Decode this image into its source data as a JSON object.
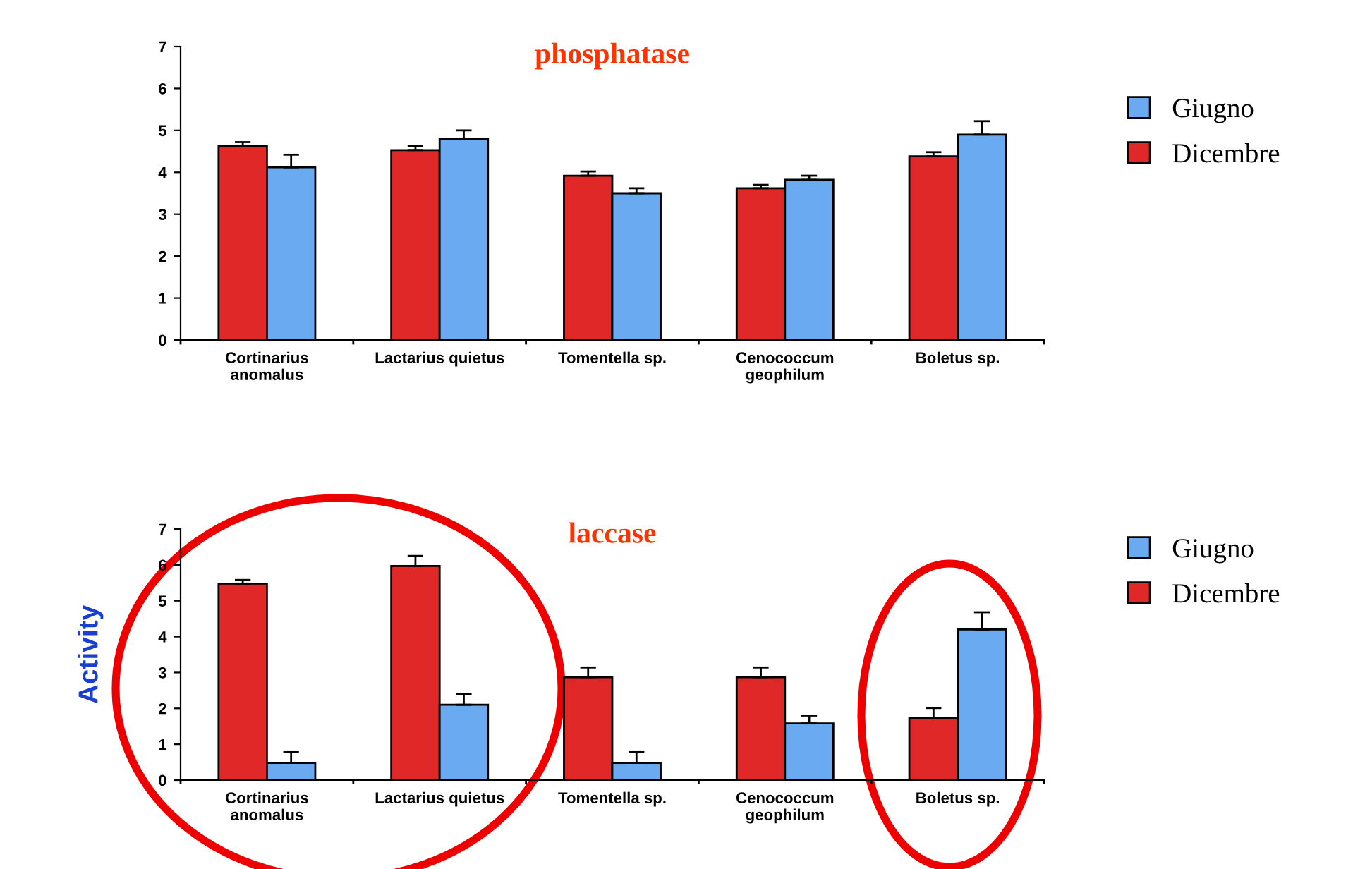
{
  "chart_data": [
    {
      "type": "bar",
      "title": "phosphatase",
      "categories": [
        "Cortinarius\nanomalus",
        "Lactarius quietus",
        "Tomentella sp.",
        "Cenococcum\ngeophilum",
        "Boletus sp."
      ],
      "ylim": [
        0,
        7
      ],
      "yticks": [
        0,
        1,
        2,
        3,
        4,
        5,
        6,
        7
      ],
      "legend": "right",
      "grid": false,
      "series": [
        {
          "name": "Dicembre",
          "color": "#e02828",
          "values": [
            4.62,
            4.53,
            3.92,
            3.62,
            4.38
          ],
          "errors": [
            0.1,
            0.1,
            0.1,
            0.08,
            0.1
          ]
        },
        {
          "name": "Giugno",
          "color": "#6aaaf0",
          "values": [
            4.12,
            4.8,
            3.5,
            3.82,
            4.9
          ],
          "errors": [
            0.3,
            0.2,
            0.12,
            0.1,
            0.32
          ]
        }
      ]
    },
    {
      "type": "bar",
      "title": "laccase",
      "ylabel": "Activity",
      "categories": [
        "Cortinarius\nanomalus",
        "Lactarius quietus",
        "Tomentella sp.",
        "Cenococcum\ngeophilum",
        "Boletus sp."
      ],
      "ylim": [
        0,
        7
      ],
      "yticks": [
        0,
        1,
        2,
        3,
        4,
        5,
        6,
        7
      ],
      "legend": "right",
      "grid": false,
      "series": [
        {
          "name": "Dicembre",
          "color": "#e02828",
          "values": [
            5.48,
            5.97,
            2.87,
            2.87,
            1.73
          ],
          "errors": [
            0.1,
            0.28,
            0.27,
            0.27,
            0.28
          ]
        },
        {
          "name": "Giugno",
          "color": "#6aaaf0",
          "values": [
            0.48,
            2.1,
            0.48,
            1.58,
            4.2
          ],
          "errors": [
            0.3,
            0.3,
            0.3,
            0.22,
            0.48
          ]
        }
      ]
    }
  ]
}
